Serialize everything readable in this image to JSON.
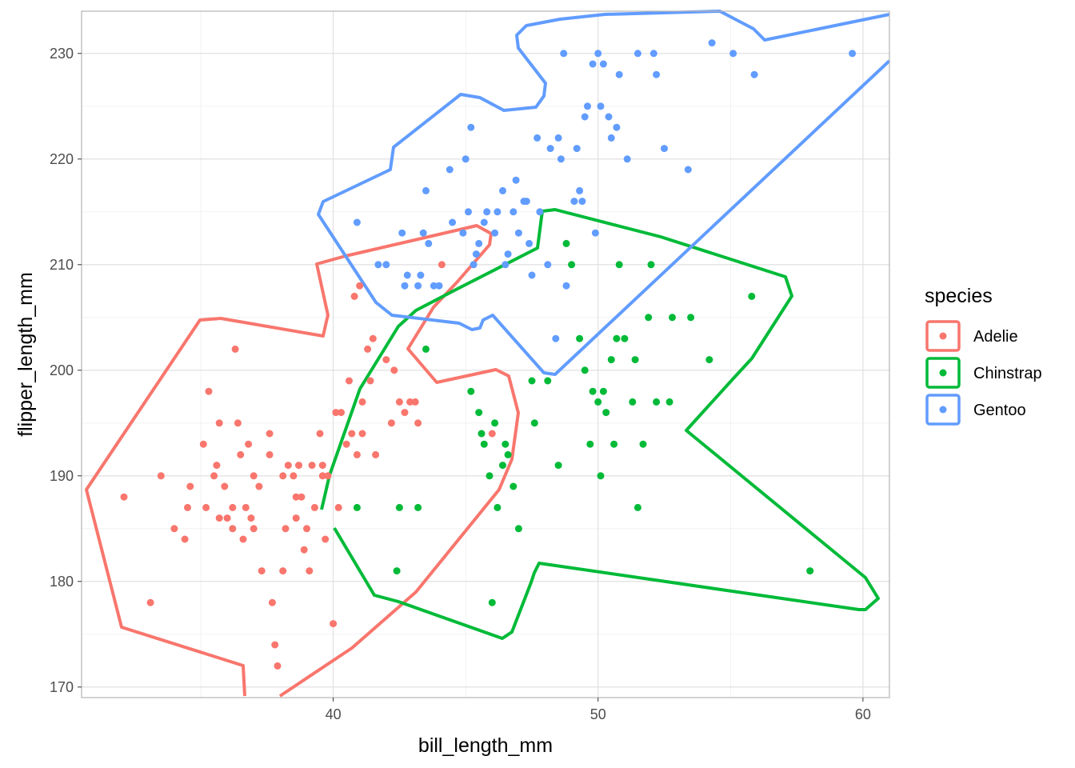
{
  "chart_data": {
    "type": "scatter",
    "xlabel": "bill_length_mm",
    "ylabel": "flipper_length_mm",
    "xlim": [
      30.5,
      61.0
    ],
    "ylim": [
      169.0,
      234.0
    ],
    "x_ticks": [
      40,
      50,
      60
    ],
    "y_ticks": [
      170,
      180,
      190,
      200,
      210,
      220,
      230
    ],
    "grid": true,
    "legend": {
      "title": "species",
      "position": "right"
    },
    "series": [
      {
        "name": "Adelie",
        "color": "#F8766D",
        "points": [
          [
            32.1,
            188
          ],
          [
            33.1,
            178
          ],
          [
            33.5,
            190
          ],
          [
            34,
            185
          ],
          [
            34.4,
            184
          ],
          [
            34.5,
            187
          ],
          [
            34.6,
            189
          ],
          [
            35.1,
            193
          ],
          [
            35.2,
            187
          ],
          [
            35.3,
            198
          ],
          [
            35.5,
            190
          ],
          [
            35.6,
            191
          ],
          [
            35.7,
            195
          ],
          [
            35.9,
            189
          ],
          [
            36,
            186
          ],
          [
            36.2,
            187
          ],
          [
            36.3,
            202
          ],
          [
            36.4,
            195
          ],
          [
            36.5,
            192
          ],
          [
            36.6,
            184
          ],
          [
            36.7,
            187
          ],
          [
            36.8,
            193
          ],
          [
            36.9,
            186
          ],
          [
            37,
            185
          ],
          [
            37.2,
            189
          ],
          [
            37.3,
            181
          ],
          [
            37.6,
            194
          ],
          [
            37.7,
            178
          ],
          [
            37.8,
            174
          ],
          [
            37.9,
            172
          ],
          [
            38.1,
            181
          ],
          [
            38.2,
            185
          ],
          [
            38.3,
            191
          ],
          [
            38.5,
            190
          ],
          [
            38.6,
            186
          ],
          [
            38.8,
            188
          ],
          [
            38.9,
            183
          ],
          [
            39,
            185
          ],
          [
            39.1,
            181
          ],
          [
            39.2,
            191
          ],
          [
            39.3,
            187
          ],
          [
            39.5,
            194
          ],
          [
            39.6,
            190
          ],
          [
            39.7,
            184
          ],
          [
            39.8,
            190
          ],
          [
            40,
            176
          ],
          [
            40.1,
            196
          ],
          [
            40.2,
            187
          ],
          [
            40.3,
            196
          ],
          [
            40.5,
            193
          ],
          [
            40.6,
            199
          ],
          [
            40.7,
            194
          ],
          [
            40.8,
            207
          ],
          [
            40.9,
            192
          ],
          [
            41,
            208
          ],
          [
            41.1,
            197
          ],
          [
            41.3,
            202
          ],
          [
            41.4,
            199
          ],
          [
            41.5,
            203
          ],
          [
            41.6,
            192
          ],
          [
            42,
            201
          ],
          [
            42.2,
            195
          ],
          [
            42.3,
            200
          ],
          [
            42.5,
            197
          ],
          [
            42.7,
            196
          ],
          [
            42.9,
            197
          ],
          [
            43.1,
            197
          ],
          [
            43.2,
            195
          ],
          [
            44.1,
            210
          ],
          [
            45.6,
            194
          ],
          [
            46,
            194
          ],
          [
            37.6,
            192
          ],
          [
            38.1,
            190
          ],
          [
            38.7,
            191
          ],
          [
            36.2,
            185
          ],
          [
            37,
            190
          ],
          [
            35.7,
            186
          ],
          [
            38.6,
            188
          ],
          [
            39.6,
            191
          ],
          [
            41.1,
            194
          ]
        ]
      },
      {
        "name": "Chinstrap",
        "color": "#00BA38",
        "points": [
          [
            40.9,
            187
          ],
          [
            42.4,
            181
          ],
          [
            42.5,
            187
          ],
          [
            43.2,
            187
          ],
          [
            43.5,
            202
          ],
          [
            45.2,
            198
          ],
          [
            45.5,
            196
          ],
          [
            45.6,
            194
          ],
          [
            45.7,
            193
          ],
          [
            45.9,
            190
          ],
          [
            46,
            178
          ],
          [
            46.1,
            195
          ],
          [
            46.2,
            187
          ],
          [
            46.4,
            191
          ],
          [
            46.5,
            193
          ],
          [
            46.6,
            192
          ],
          [
            46.8,
            189
          ],
          [
            47,
            185
          ],
          [
            47.5,
            199
          ],
          [
            47.6,
            195
          ],
          [
            48.1,
            199
          ],
          [
            48.5,
            191
          ],
          [
            48.8,
            212
          ],
          [
            49,
            210
          ],
          [
            49.3,
            203
          ],
          [
            49.5,
            200
          ],
          [
            49.7,
            193
          ],
          [
            49.8,
            198
          ],
          [
            50,
            197
          ],
          [
            50.1,
            190
          ],
          [
            50.2,
            198
          ],
          [
            50.3,
            196
          ],
          [
            50.5,
            201
          ],
          [
            50.6,
            193
          ],
          [
            50.7,
            203
          ],
          [
            50.8,
            210
          ],
          [
            51,
            203
          ],
          [
            51.3,
            197
          ],
          [
            51.4,
            201
          ],
          [
            51.5,
            187
          ],
          [
            51.7,
            193
          ],
          [
            51.9,
            205
          ],
          [
            52,
            210
          ],
          [
            52.2,
            197
          ],
          [
            52.7,
            197
          ],
          [
            52.8,
            205
          ],
          [
            53.5,
            205
          ],
          [
            54.2,
            201
          ],
          [
            55.8,
            207
          ],
          [
            58,
            181
          ]
        ]
      },
      {
        "name": "Gentoo",
        "color": "#619CFF",
        "points": [
          [
            40.9,
            214
          ],
          [
            41.7,
            210
          ],
          [
            42,
            210
          ],
          [
            42.6,
            213
          ],
          [
            42.7,
            208
          ],
          [
            42.8,
            209
          ],
          [
            43.2,
            208
          ],
          [
            43.3,
            209
          ],
          [
            43.4,
            213
          ],
          [
            43.5,
            217
          ],
          [
            43.6,
            212
          ],
          [
            43.8,
            208
          ],
          [
            44,
            208
          ],
          [
            44.4,
            219
          ],
          [
            44.5,
            214
          ],
          [
            44.9,
            213
          ],
          [
            45,
            220
          ],
          [
            45.1,
            215
          ],
          [
            45.2,
            223
          ],
          [
            45.3,
            210
          ],
          [
            45.4,
            211
          ],
          [
            45.5,
            212
          ],
          [
            45.7,
            214
          ],
          [
            45.8,
            215
          ],
          [
            46.1,
            213
          ],
          [
            46.2,
            215
          ],
          [
            46.4,
            217
          ],
          [
            46.5,
            210
          ],
          [
            46.6,
            211
          ],
          [
            46.8,
            215
          ],
          [
            47,
            213
          ],
          [
            47.2,
            216
          ],
          [
            47.3,
            216
          ],
          [
            47.5,
            209
          ],
          [
            47.7,
            222
          ],
          [
            47.8,
            215
          ],
          [
            48.1,
            210
          ],
          [
            48.2,
            221
          ],
          [
            48.4,
            203
          ],
          [
            48.5,
            222
          ],
          [
            48.7,
            230
          ],
          [
            48.8,
            208
          ],
          [
            49.1,
            216
          ],
          [
            49.2,
            221
          ],
          [
            49.3,
            217
          ],
          [
            49.4,
            216
          ],
          [
            49.5,
            224
          ],
          [
            49.6,
            225
          ],
          [
            49.8,
            229
          ],
          [
            49.9,
            213
          ],
          [
            50,
            230
          ],
          [
            50.1,
            225
          ],
          [
            50.2,
            229
          ],
          [
            50.4,
            224
          ],
          [
            50.5,
            222
          ],
          [
            50.7,
            223
          ],
          [
            50.8,
            228
          ],
          [
            51.1,
            220
          ],
          [
            51.5,
            230
          ],
          [
            52.1,
            230
          ],
          [
            52.2,
            228
          ],
          [
            52.5,
            221
          ],
          [
            53.4,
            219
          ],
          [
            54.3,
            231
          ],
          [
            55.1,
            230
          ],
          [
            55.9,
            228
          ],
          [
            59.6,
            230
          ],
          [
            46.9,
            218
          ],
          [
            47.4,
            212
          ],
          [
            48.6,
            220
          ]
        ]
      }
    ]
  }
}
